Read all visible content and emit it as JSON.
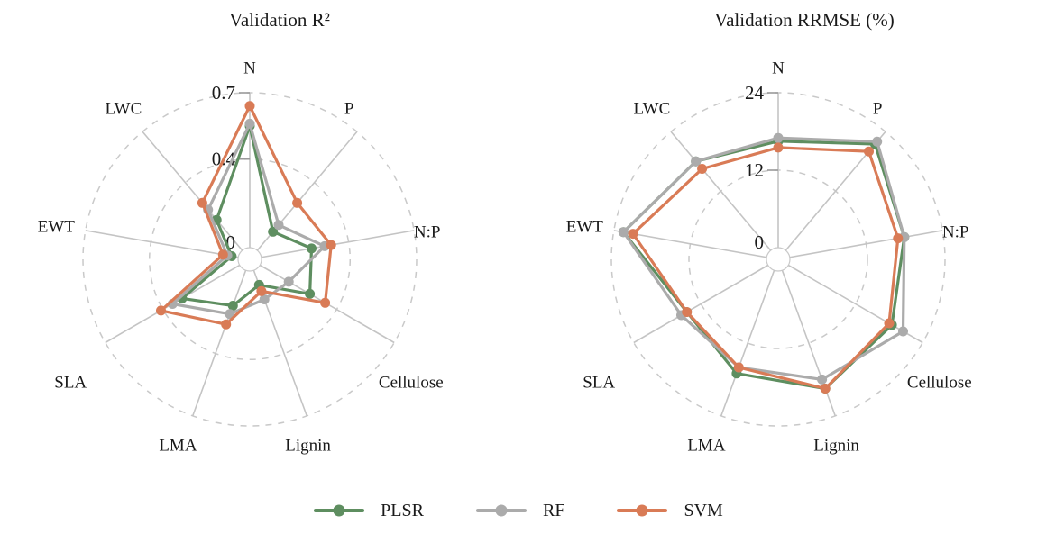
{
  "figure": {
    "background": "#ffffff",
    "text_color": "#1a1a1a",
    "grid_color": "#c9c9c9",
    "spoke_color": "#c4c4c4"
  },
  "chart_data": [
    {
      "type": "radar",
      "title": "Validation R²",
      "axes": [
        "N",
        "P",
        "N:P",
        "Cellulose",
        "Lignin",
        "LMA",
        "SLA",
        "EWT",
        "LWC"
      ],
      "ticks": [
        0,
        0.4,
        0.7
      ],
      "tick_labels": [
        "0",
        "0.4",
        "0.7"
      ],
      "max": 0.7,
      "grid": "dashed-circles",
      "legend_position": "bottom",
      "series": [
        {
          "name": "PLSR",
          "color": "#5e8e60",
          "values": [
            0.55,
            0.11,
            0.23,
            0.26,
            0.07,
            0.17,
            0.3,
            0.03,
            0.18
          ]
        },
        {
          "name": "RF",
          "color": "#ababab",
          "values": [
            0.56,
            0.15,
            0.29,
            0.15,
            0.14,
            0.21,
            0.35,
            0.05,
            0.24
          ]
        },
        {
          "name": "SVM",
          "color": "#d97b56",
          "values": [
            0.64,
            0.28,
            0.32,
            0.34,
            0.1,
            0.26,
            0.41,
            0.07,
            0.28
          ]
        }
      ]
    },
    {
      "type": "radar",
      "title": "Validation RRMSE (%)",
      "axes": [
        "N",
        "P",
        "N:P",
        "Cellulose",
        "Lignin",
        "LMA",
        "SLA",
        "EWT",
        "LWC"
      ],
      "ticks": [
        0,
        12,
        24
      ],
      "tick_labels": [
        "0",
        "12",
        "24"
      ],
      "max": 24,
      "grid": "dashed-circles",
      "legend_position": "bottom",
      "series": [
        {
          "name": "PLSR",
          "color": "#5e8e60",
          "values": [
            16.5,
            21.5,
            18.0,
            18.5,
            19.5,
            17.0,
            14.5,
            22.5,
            18.0
          ]
        },
        {
          "name": "RF",
          "color": "#ababab",
          "values": [
            17.0,
            22.0,
            18.0,
            20.5,
            18.0,
            16.0,
            15.5,
            22.5,
            18.0
          ]
        },
        {
          "name": "SVM",
          "color": "#d97b56",
          "values": [
            15.5,
            20.0,
            17.0,
            18.0,
            19.5,
            16.0,
            14.5,
            21.0,
            16.5
          ]
        }
      ]
    }
  ]
}
